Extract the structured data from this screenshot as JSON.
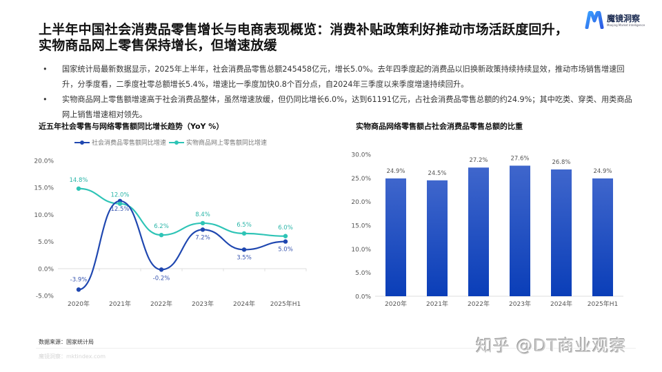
{
  "header": {
    "title_line1": "上半年中国社会消费品零售增长与电商表现概览：消费补贴政策利好推动市场活跃度回升，",
    "title_line2": "实物商品网上零售保持增长，但增速放缓",
    "logo_cn": "魔镜洞察",
    "logo_en": "Moojing Market Intelligence"
  },
  "bullets": [
    "国家统计局最新数据显示，2025年上半年，社会消费品零售总额245458亿元，增长5.0%。去年四季度起的消费品以旧换新政策持续持续显效，推动市场销售增速回升，分季度看，二季度社零总额增长5.4%，增速比一季度加快0.8个百分点，自2024年三季度以来季度增速持续回升。",
    "实物商品网上零售额增速高于社会消费品整体，虽然增速放缓，但仍同比增长6.0%，达到61191亿元，占社会消费品零售总额的约24.9%；其中吃类、穿类、用类商品网上销售增速相对领先。"
  ],
  "footer": {
    "source": "数据来源：国家统计局",
    "site": "魔镜洞察：mktindex.com",
    "watermark": "知乎 @DT商业观察"
  },
  "colors": {
    "series_total": "#1f47b0",
    "series_online": "#2ec4b6",
    "bar_top": "#3f66cc",
    "bar_bottom": "#0a3eb8",
    "axis": "#dddddd",
    "tick_label": "#555555"
  },
  "chart_data": [
    {
      "type": "line",
      "title": "近五年社会零售与网络零售额同比增长趋势（YoY %）",
      "categories": [
        "2020年",
        "2021年",
        "2022年",
        "2023年",
        "2024年",
        "2025年H1"
      ],
      "series": [
        {
          "name": "社会消费品零售额同比增速",
          "values": [
            -3.9,
            12.5,
            -0.2,
            7.2,
            3.5,
            5.0
          ],
          "labels": [
            "-3.9%",
            "12.5%",
            "-0.2%",
            "7.2%",
            "3.5%",
            "5.0%"
          ]
        },
        {
          "name": "实物商品网上零售额同比增速",
          "values": [
            14.8,
            12.0,
            6.2,
            8.4,
            6.5,
            6.0
          ],
          "labels": [
            "14.8%",
            "12.0%",
            "6.2%",
            "8.4%",
            "6.5%",
            "6.0%"
          ]
        }
      ],
      "yticks": [
        "20.0%",
        "15.0%",
        "10.0%",
        "5.0%",
        "0.0%",
        "-5.0%"
      ],
      "ylim": [
        -5,
        20
      ],
      "xlabel": "",
      "ylabel": "",
      "legend_position": "top",
      "grid": false,
      "smooth": true
    },
    {
      "type": "bar",
      "title": "实物商品网络零售额占社会消费品零售总额的比重",
      "categories": [
        "2020年",
        "2021年",
        "2022年",
        "2023年",
        "2024年",
        "2025年H1"
      ],
      "values": [
        24.9,
        24.5,
        27.2,
        27.6,
        26.8,
        24.9
      ],
      "labels": [
        "24.9%",
        "24.5%",
        "27.2%",
        "27.6%",
        "26.8%",
        "24.9%"
      ],
      "yticks": [
        "30.0%",
        "25.0%",
        "20.0%",
        "15.0%",
        "10.0%",
        "5.0%",
        "0.0%"
      ],
      "ylim": [
        0,
        30
      ],
      "xlabel": "",
      "ylabel": "",
      "grid": false
    }
  ]
}
